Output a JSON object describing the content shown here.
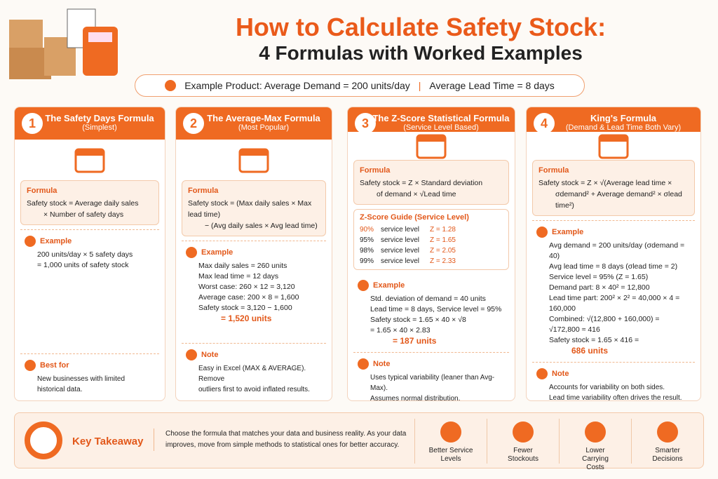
{
  "header": {
    "title": "How to Calculate Safety Stock:",
    "subtitle": "4 Formulas with Worked Examples",
    "example_product": "Example Product: Average Demand = 200 units/day",
    "lead_time": "Average Lead Time = 8 days"
  },
  "cards": [
    {
      "number": "1",
      "title": "The Safety Days Formula",
      "subtitle": "(Simplest)",
      "formula_label": "Formula",
      "formula": [
        "Safety stock = Average daily sales",
        "× Number of safety days"
      ],
      "example_label": "Example",
      "example": [
        "200 units/day × 5 safety days",
        "= 1,000 units of safety stock"
      ],
      "extra_label": "Best for",
      "extra": [
        "New businesses with limited",
        "historical data."
      ]
    },
    {
      "number": "2",
      "title": "The Average-Max Formula",
      "subtitle": "(Most Popular)",
      "formula_label": "Formula",
      "formula": [
        "Safety stock = (Max daily sales × Max lead time)",
        "− (Avg daily sales × Avg lead time)"
      ],
      "example_label": "Example",
      "example": [
        "Max daily sales = 260 units",
        "Max lead time = 12 days",
        "Worst case: 260 × 12 = 3,120",
        "Average case: 200 × 8 = 1,600",
        "Safety stock  =  3,120  −  1,600"
      ],
      "result": "= 1,520 units",
      "extra_label": "Note",
      "extra": [
        "Easy in Excel (MAX & AVERAGE). Remove",
        "outliers first to avoid inflated results."
      ]
    },
    {
      "number": "3",
      "title": "The Z-Score Statistical Formula",
      "subtitle": "(Service Level Based)",
      "formula_label": "Formula",
      "formula": [
        "Safety stock = Z × Standard deviation",
        "of demand × √Lead time"
      ],
      "guide_label": "Z-Score Guide (Service Level)",
      "guide": [
        [
          "90%",
          "service level",
          "Z = 1.28"
        ],
        [
          "95%",
          "service level",
          "Z = 1.65"
        ],
        [
          "98%",
          "service level",
          "Z = 2.05"
        ],
        [
          "99%",
          "service level",
          "Z = 2.33"
        ]
      ],
      "example_label": "Example",
      "example": [
        "Std. deviation of demand = 40 units",
        "Lead time = 8 days, Service level = 95%",
        "Safety stock  = 1.65 × 40 × √8",
        "= 1.65 × 40 × 2.83"
      ],
      "result": "= 187 units",
      "extra_label": "Note",
      "extra": [
        "Uses typical variability (leaner than Avg-Max).",
        "Assumes normal distribution."
      ]
    },
    {
      "number": "4",
      "title": "King's Formula",
      "subtitle": "(Demand & Lead Time Both Vary)",
      "formula_label": "Formula",
      "formula": [
        "Safety stock = Z × √(Average lead time ×",
        "σdemand² + Average demand² × σlead time²)"
      ],
      "example_label": "Example",
      "example": [
        "Avg demand = 200 units/day (σdemand = 40)",
        "Avg lead time = 8 days (σlead time = 2)",
        "Service level = 95% (Z = 1.65)",
        "Demand part:   8 × 40² = 12,800",
        "Lead time part:  200² × 2² = 40,000 × 4 = 160,000",
        "Combined: √(12,800 + 160,000) = √172,800 ≈ 416",
        "Safety stock  =  1.65 × 416 ="
      ],
      "result": "686 units",
      "extra_label": "Note",
      "extra": [
        "Accounts for variability on both sides.",
        "Lead time variability often drives the result."
      ]
    }
  ],
  "footer": {
    "label": "Key Takeaway",
    "text": "Choose the formula that matches your data and business reality. As your data improves, move from simple methods to statistical ones for better accuracy.",
    "benefits": [
      "Better Service Levels",
      "Fewer Stockouts",
      "Lower Carrying Costs",
      "Smarter Decisions"
    ]
  }
}
